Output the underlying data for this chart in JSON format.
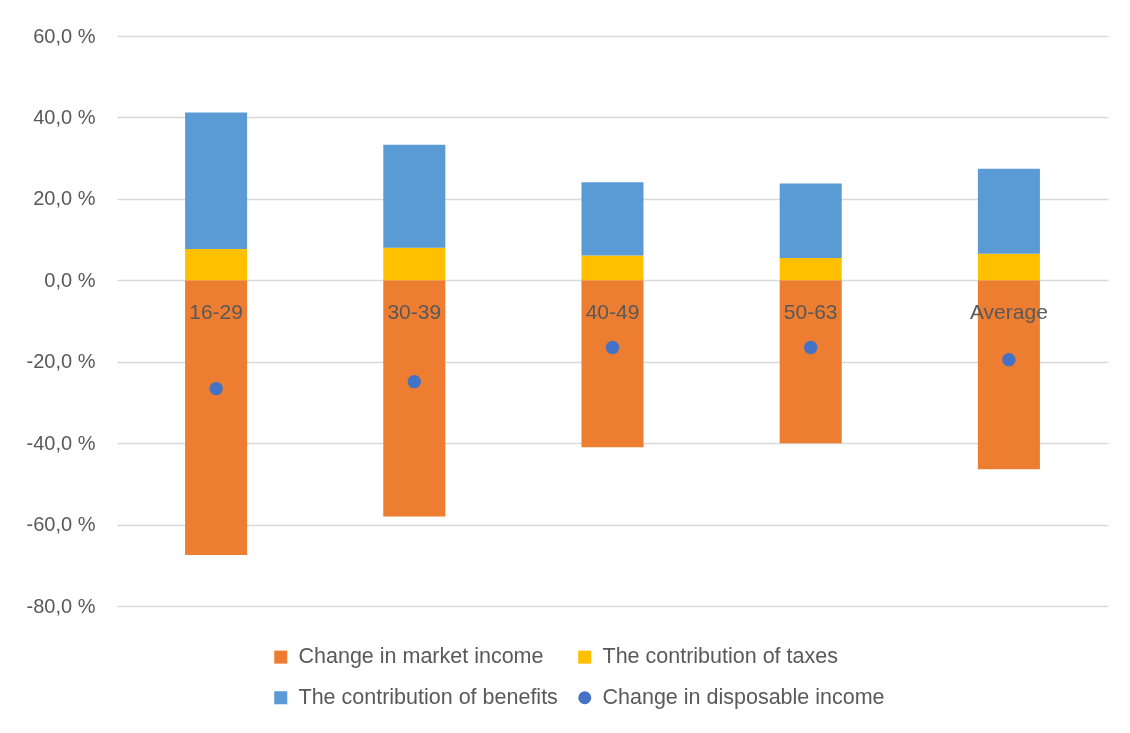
{
  "chart_data": {
    "type": "bar",
    "categories": [
      "16-29",
      "30-39",
      "40-49",
      "50-63",
      "Average"
    ],
    "series": [
      {
        "name": "Change in market income",
        "color": "#ed7d31",
        "values": [
          -67.5,
          -58.0,
          -41.0,
          -40.0,
          -46.4
        ]
      },
      {
        "name": "The contribution of taxes",
        "color": "#ffc000",
        "values": [
          7.7,
          8.0,
          6.1,
          5.5,
          6.5
        ]
      },
      {
        "name": "The contribution of benefits",
        "color": "#5b9bd5",
        "values": [
          33.5,
          25.3,
          18.0,
          18.3,
          20.9
        ]
      },
      {
        "name": "Change in disposable income",
        "type": "scatter",
        "color": "#4472c4",
        "values": [
          -26.6,
          -24.9,
          -16.5,
          -16.5,
          -19.5
        ]
      }
    ],
    "stacked": true,
    "ylim": [
      -80,
      60
    ],
    "yticks": [
      {
        "value": -80,
        "label": "-80,0 %"
      },
      {
        "value": -60,
        "label": "-60,0 %"
      },
      {
        "value": -40,
        "label": "-40,0 %"
      },
      {
        "value": -20,
        "label": "-20,0 %"
      },
      {
        "value": 0,
        "label": "0,0 %"
      },
      {
        "value": 20,
        "label": "20,0 %"
      },
      {
        "value": 40,
        "label": "40,0 %"
      },
      {
        "value": 60,
        "label": "60,0 %"
      }
    ],
    "grid": "y",
    "legend": "bottom",
    "marker": "circle"
  }
}
